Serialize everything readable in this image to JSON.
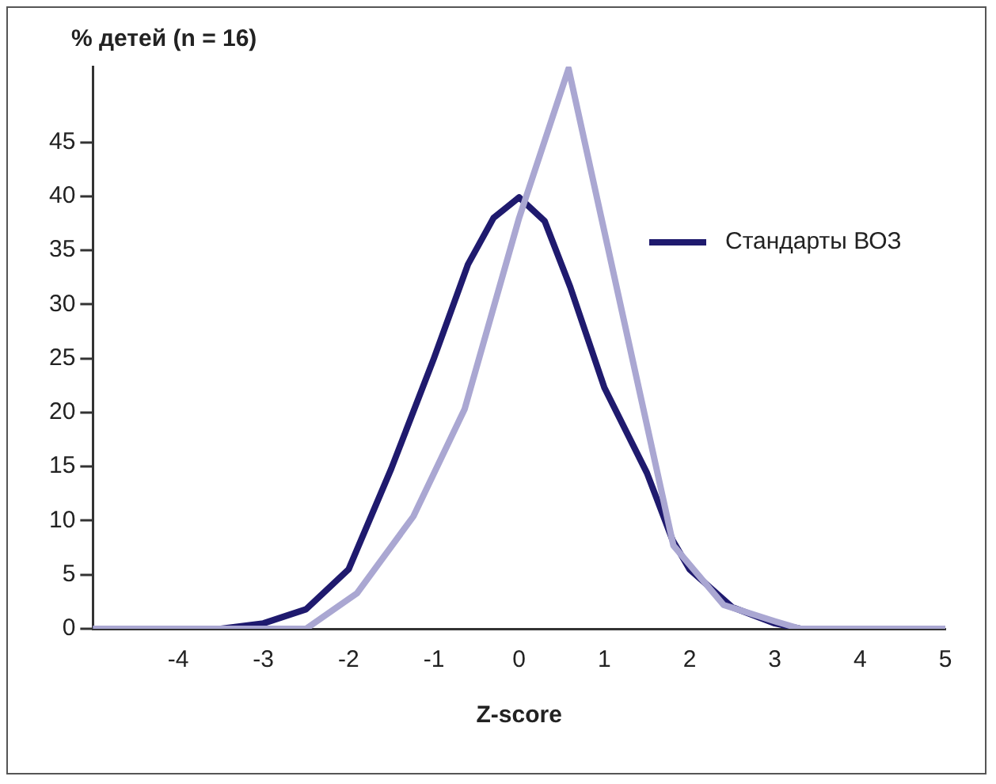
{
  "chart_data": {
    "type": "line",
    "xlabel": "Z-score",
    "ylabel": "% детей (n = 16)",
    "xlim": [
      -5,
      5
    ],
    "ylim": [
      0,
      52
    ],
    "xticks": [
      {
        "value": -5,
        "label": null
      },
      -4,
      -3,
      -2,
      -1,
      0,
      1,
      2,
      3,
      4,
      5
    ],
    "yticks": [
      0,
      5,
      10,
      15,
      20,
      25,
      30,
      35,
      40,
      45
    ],
    "grid": false,
    "legend": "right",
    "marker": "none",
    "line_style": "solid",
    "series": [
      {
        "color": "#aaa7d2",
        "x": [
          -5,
          -2.5,
          -1.9,
          -1.24,
          -0.64,
          0,
          0.58,
          1.81,
          2.4,
          3,
          3.3,
          5
        ],
        "values": [
          0,
          0,
          3.3,
          10.4,
          20.3,
          38,
          51.8,
          7.7,
          2.2,
          0.7,
          0,
          0
        ]
      },
      {
        "name": "Стандарты ВОЗ",
        "color": "#1f1a6e",
        "x": [
          -5,
          -3.5,
          -3,
          -2.5,
          -2,
          -1.5,
          -1,
          -0.6,
          -0.3,
          0,
          0.3,
          0.6,
          1,
          1.5,
          1.8,
          2,
          2.5,
          3,
          3.3,
          5
        ],
        "values": [
          0,
          0,
          0.5,
          1.8,
          5.5,
          14.8,
          25,
          33.7,
          38,
          39.9,
          37.7,
          31.6,
          22.3,
          14.4,
          8.2,
          5.5,
          2,
          0.5,
          0,
          0
        ]
      }
    ]
  }
}
